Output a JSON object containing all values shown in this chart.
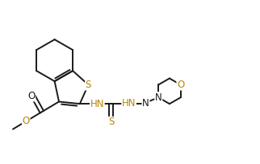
{
  "bg_color": "#ffffff",
  "bond_color": "#1a1a1a",
  "S_color": "#b8860b",
  "N_color": "#1a1a1a",
  "O_color": "#b8860b",
  "line_width": 1.4,
  "font_size": 8.5,
  "figsize": [
    3.22,
    2.04
  ],
  "dpi": 100,
  "xlim": [
    0,
    10
  ],
  "ylim": [
    0,
    6.4
  ]
}
